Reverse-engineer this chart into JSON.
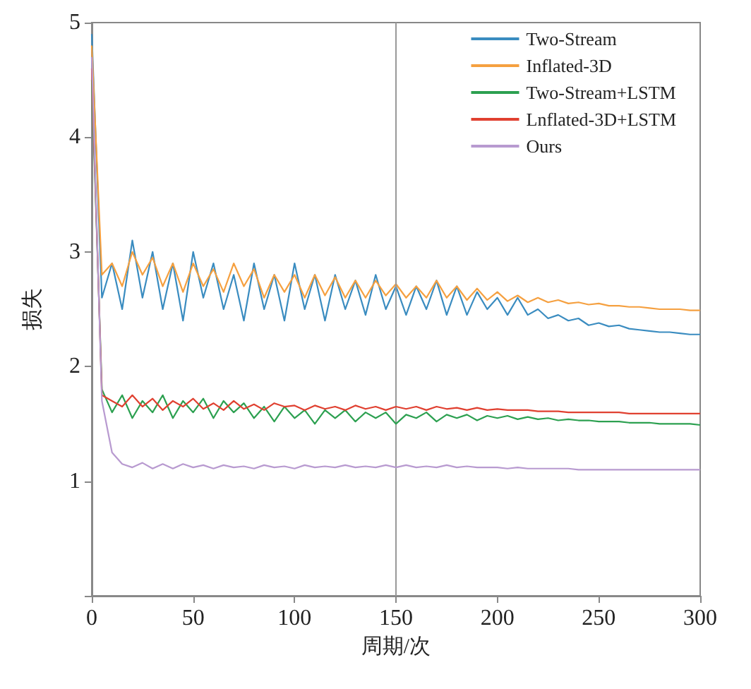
{
  "chart_data": {
    "type": "line",
    "xlabel": "周期/次",
    "ylabel": "损失",
    "x": [
      0,
      5,
      10,
      15,
      20,
      25,
      30,
      35,
      40,
      45,
      50,
      55,
      60,
      65,
      70,
      75,
      80,
      85,
      90,
      95,
      100,
      105,
      110,
      115,
      120,
      125,
      130,
      135,
      140,
      145,
      150,
      155,
      160,
      165,
      170,
      175,
      180,
      185,
      190,
      195,
      200,
      205,
      210,
      215,
      220,
      225,
      230,
      235,
      240,
      245,
      250,
      255,
      260,
      265,
      270,
      275,
      280,
      285,
      290,
      295,
      300
    ],
    "series": [
      {
        "name": "Two-Stream",
        "color": "#3a8cc0",
        "values": [
          4.9,
          2.6,
          2.9,
          2.5,
          3.1,
          2.6,
          3.0,
          2.5,
          2.9,
          2.4,
          3.0,
          2.6,
          2.9,
          2.5,
          2.8,
          2.4,
          2.9,
          2.5,
          2.8,
          2.4,
          2.9,
          2.5,
          2.8,
          2.4,
          2.8,
          2.5,
          2.75,
          2.45,
          2.8,
          2.5,
          2.7,
          2.45,
          2.7,
          2.5,
          2.75,
          2.45,
          2.7,
          2.45,
          2.65,
          2.5,
          2.6,
          2.45,
          2.6,
          2.45,
          2.5,
          2.42,
          2.45,
          2.4,
          2.42,
          2.36,
          2.38,
          2.35,
          2.36,
          2.33,
          2.32,
          2.31,
          2.3,
          2.3,
          2.29,
          2.28,
          2.28
        ]
      },
      {
        "name": "Inflated-3D",
        "color": "#f5a040",
        "values": [
          4.8,
          2.8,
          2.9,
          2.7,
          3.0,
          2.8,
          2.95,
          2.7,
          2.9,
          2.65,
          2.9,
          2.7,
          2.85,
          2.65,
          2.9,
          2.7,
          2.85,
          2.6,
          2.8,
          2.65,
          2.8,
          2.6,
          2.8,
          2.62,
          2.78,
          2.6,
          2.75,
          2.6,
          2.75,
          2.62,
          2.72,
          2.6,
          2.7,
          2.6,
          2.75,
          2.6,
          2.7,
          2.58,
          2.68,
          2.58,
          2.65,
          2.57,
          2.62,
          2.56,
          2.6,
          2.56,
          2.58,
          2.55,
          2.56,
          2.54,
          2.55,
          2.53,
          2.53,
          2.52,
          2.52,
          2.51,
          2.5,
          2.5,
          2.5,
          2.49,
          2.49
        ]
      },
      {
        "name": "Two-Stream+LSTM",
        "color": "#2ca050",
        "values": [
          4.5,
          1.8,
          1.6,
          1.75,
          1.55,
          1.7,
          1.6,
          1.75,
          1.55,
          1.7,
          1.6,
          1.72,
          1.55,
          1.7,
          1.6,
          1.68,
          1.55,
          1.65,
          1.52,
          1.65,
          1.55,
          1.62,
          1.5,
          1.62,
          1.55,
          1.62,
          1.52,
          1.6,
          1.55,
          1.6,
          1.5,
          1.58,
          1.55,
          1.6,
          1.52,
          1.58,
          1.55,
          1.58,
          1.53,
          1.57,
          1.55,
          1.57,
          1.54,
          1.56,
          1.54,
          1.55,
          1.53,
          1.54,
          1.53,
          1.53,
          1.52,
          1.52,
          1.52,
          1.51,
          1.51,
          1.51,
          1.5,
          1.5,
          1.5,
          1.5,
          1.49
        ]
      },
      {
        "name": "Lnflated-3D+LSTM",
        "color": "#e04030",
        "values": [
          4.6,
          1.75,
          1.7,
          1.65,
          1.75,
          1.65,
          1.72,
          1.62,
          1.7,
          1.65,
          1.72,
          1.63,
          1.68,
          1.62,
          1.7,
          1.63,
          1.67,
          1.62,
          1.68,
          1.65,
          1.66,
          1.62,
          1.66,
          1.63,
          1.65,
          1.62,
          1.66,
          1.63,
          1.65,
          1.62,
          1.65,
          1.63,
          1.65,
          1.62,
          1.65,
          1.63,
          1.64,
          1.62,
          1.64,
          1.62,
          1.63,
          1.62,
          1.62,
          1.62,
          1.61,
          1.61,
          1.61,
          1.6,
          1.6,
          1.6,
          1.6,
          1.6,
          1.6,
          1.59,
          1.59,
          1.59,
          1.59,
          1.59,
          1.59,
          1.59,
          1.59
        ]
      },
      {
        "name": "Ours",
        "color": "#b89ad0",
        "values": [
          4.7,
          1.7,
          1.25,
          1.15,
          1.12,
          1.16,
          1.11,
          1.15,
          1.11,
          1.15,
          1.12,
          1.14,
          1.11,
          1.14,
          1.12,
          1.13,
          1.11,
          1.14,
          1.12,
          1.13,
          1.11,
          1.14,
          1.12,
          1.13,
          1.12,
          1.14,
          1.12,
          1.13,
          1.12,
          1.14,
          1.12,
          1.14,
          1.12,
          1.13,
          1.12,
          1.14,
          1.12,
          1.13,
          1.12,
          1.12,
          1.12,
          1.11,
          1.12,
          1.11,
          1.11,
          1.11,
          1.11,
          1.11,
          1.1,
          1.1,
          1.1,
          1.1,
          1.1,
          1.1,
          1.1,
          1.1,
          1.1,
          1.1,
          1.1,
          1.1,
          1.1
        ]
      }
    ],
    "xlim": [
      0,
      300
    ],
    "xticks": [
      0,
      50,
      100,
      150,
      200,
      250,
      300
    ],
    "ylim": [
      0,
      5
    ],
    "yticks": [
      {
        "value": 0,
        "label": null
      },
      1,
      2,
      3,
      4,
      5
    ],
    "ref_lines": [
      {
        "axis": "x",
        "value": 150,
        "color": "#999999"
      }
    ],
    "grid": false,
    "legend": "top right",
    "marker": "none",
    "line_style": "solid"
  }
}
